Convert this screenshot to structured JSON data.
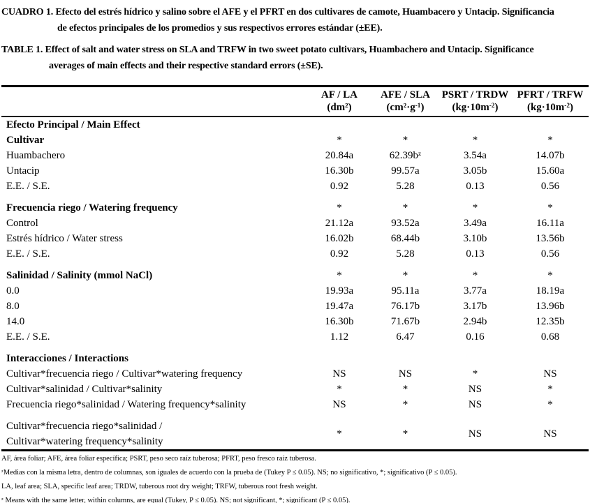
{
  "page": {
    "background_color": "#ffffff",
    "text_color": "#000000"
  },
  "captions": {
    "spanish": {
      "line1": "CUADRO 1. Efecto del estrés hídrico y salino sobre el AFE y el PFRT en dos cultivares de camote, Huambacero y Untacip. Significancia",
      "line2": "de efectos principales de los promedios y sus respectivos errores estándar (±EE)."
    },
    "english": {
      "line1": "TABLE 1. Effect of salt and water stress on SLA and TRFW in two sweet potato cultivars, Huambachero and Untacip. Significance",
      "line2": "averages of main effects and their respective standard errors (±SE)."
    }
  },
  "table": {
    "header": [
      {
        "line1": "",
        "line2": ""
      },
      {
        "line1": "AF / LA",
        "line2": "(dm²)"
      },
      {
        "line1": "AFE / SLA",
        "line2": "(cm²·g⁻¹)"
      },
      {
        "line1": "PSRT / TRDW",
        "line2": "(kg·10m⁻²)"
      },
      {
        "line1": "PFRT / TRFW",
        "line2": "(kg·10m⁻²)"
      }
    ],
    "rows": [
      {
        "type": "section",
        "label": "Efecto Principal / Main Effect",
        "values": [
          "",
          "",
          "",
          ""
        ]
      },
      {
        "type": "section",
        "label": "Cultivar",
        "values": [
          "*",
          "*",
          "*",
          "*"
        ]
      },
      {
        "type": "data",
        "label": "Huambachero",
        "values": [
          "20.84a",
          "62.39bᶻ",
          "3.54a",
          "14.07b"
        ]
      },
      {
        "type": "data",
        "label": "Untacip",
        "values": [
          "16.30b",
          "99.57a",
          "3.05b",
          "15.60a"
        ]
      },
      {
        "type": "data",
        "label": "E.E. / S.E.",
        "values": [
          "0.92",
          "5.28",
          "0.13",
          "0.56"
        ]
      },
      {
        "type": "spacer"
      },
      {
        "type": "section",
        "label": "Frecuencia riego / Watering frequency",
        "values": [
          "*",
          "*",
          "*",
          "*"
        ]
      },
      {
        "type": "data",
        "label": "Control",
        "values": [
          "21.12a",
          "93.52a",
          "3.49a",
          "16.11a"
        ]
      },
      {
        "type": "data",
        "label": "Estrés hídrico / Water stress",
        "values": [
          "16.02b",
          "68.44b",
          "3.10b",
          "13.56b"
        ]
      },
      {
        "type": "data",
        "label": "E.E. / S.E.",
        "values": [
          "0.92",
          "5.28",
          "0.13",
          "0.56"
        ]
      },
      {
        "type": "spacer"
      },
      {
        "type": "section",
        "label": "Salinidad / Salinity (mmol NaCl)",
        "values": [
          "*",
          "*",
          "*",
          "*"
        ]
      },
      {
        "type": "data",
        "label": "0.0",
        "values": [
          "19.93a",
          "95.11a",
          "3.77a",
          "18.19a"
        ]
      },
      {
        "type": "data",
        "label": "8.0",
        "values": [
          "19.47a",
          "76.17b",
          "3.17b",
          "13.96b"
        ]
      },
      {
        "type": "data",
        "label": "14.0",
        "values": [
          "16.30b",
          "71.67b",
          "2.94b",
          "12.35b"
        ]
      },
      {
        "type": "data",
        "label": "E.E. / S.E.",
        "values": [
          "1.12",
          "6.47",
          "0.16",
          "0.68"
        ]
      },
      {
        "type": "spacer"
      },
      {
        "type": "section",
        "label": "Interacciones / Interactions",
        "values": [
          "",
          "",
          "",
          ""
        ]
      },
      {
        "type": "data",
        "label": "Cultivar*frecuencia riego / Cultivar*watering frequency",
        "values": [
          "NS",
          "NS",
          "*",
          "NS"
        ]
      },
      {
        "type": "data",
        "label": "Cultivar*salinidad / Cultivar*salinity",
        "values": [
          "*",
          "*",
          "NS",
          "*"
        ]
      },
      {
        "type": "data",
        "label": "Frecuencia riego*salinidad / Watering frequency*salinity",
        "values": [
          "NS",
          "*",
          "NS",
          "*"
        ]
      },
      {
        "type": "spacer"
      },
      {
        "type": "data",
        "label": "Cultivar*frecuencia riego*salinidad /",
        "label2": "Cultivar*watering frequency*salinity",
        "values": [
          "*",
          "*",
          "NS",
          "NS"
        ]
      }
    ]
  },
  "footnotes": [
    "AF, área foliar; AFE, área foliar específica; PSRT, peso seco raíz tuberosa; PFRT, peso fresco raíz tuberosa.",
    "ᶻMedias con la misma letra, dentro de columnas, son iguales de acuerdo con la prueba de (Tukey P ≤ 0.05). NS; no significativo, *; significativo (P ≤ 0.05).",
    "LA, leaf area; SLA, specific leaf area; TRDW, tuberous root dry weight; TRFW, tuberous root fresh weight.",
    "ᶻ Means with the same letter, within columns, are equal (Tukey,  P ≤ 0.05). NS; not significant, *; significant (P ≤ 0.05)."
  ]
}
